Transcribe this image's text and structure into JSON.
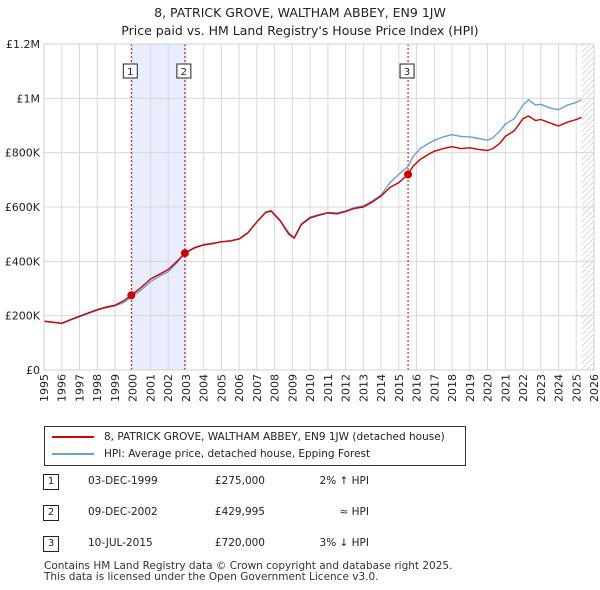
{
  "title": {
    "line1": "8, PATRICK GROVE, WALTHAM ABBEY, EN9 1JW",
    "line2": "Price paid vs. HM Land Registry's House Price Index (HPI)"
  },
  "colors": {
    "property": "#cc0000",
    "hpi": "#6a9fd4",
    "shade": "#e8eeff",
    "vline": "#cc0000"
  },
  "chart_data": {
    "type": "line",
    "title": "8, PATRICK GROVE, WALTHAM ABBEY, EN9 1JW",
    "subtitle": "Price paid vs. HM Land Registry's House Price Index (HPI)",
    "xlim": [
      1995,
      2026
    ],
    "ylim": [
      0,
      1200000
    ],
    "y_ticks": [
      {
        "value": 0,
        "label": "£0"
      },
      {
        "value": 200000,
        "label": "£200K"
      },
      {
        "value": 400000,
        "label": "£400K"
      },
      {
        "value": 600000,
        "label": "£600K"
      },
      {
        "value": 800000,
        "label": "£800K"
      },
      {
        "value": 1000000,
        "label": "£1M"
      },
      {
        "value": 1200000,
        "label": "£1.2M"
      }
    ],
    "x_ticks": [
      "1995",
      "1996",
      "1997",
      "1998",
      "1999",
      "2000",
      "2001",
      "2002",
      "2003",
      "2004",
      "2005",
      "2006",
      "2007",
      "2008",
      "2009",
      "2010",
      "2011",
      "2012",
      "2013",
      "2014",
      "2015",
      "2016",
      "2017",
      "2018",
      "2019",
      "2020",
      "2021",
      "2022",
      "2023",
      "2024",
      "2025",
      "2026"
    ],
    "shaded_periods": [
      [
        1999.92,
        2002.94
      ]
    ],
    "hatched_after": 2025.3,
    "series": [
      {
        "name": "8, PATRICK GROVE, WALTHAM ABBEY, EN9 1JW (detached house)",
        "x": [
          1995,
          1995.5,
          1996,
          1996.5,
          1997,
          1997.5,
          1998,
          1998.5,
          1999,
          1999.5,
          1999.92,
          2000.5,
          2001,
          2001.5,
          2002,
          2002.5,
          2002.94,
          2003.5,
          2004,
          2004.5,
          2005,
          2005.5,
          2006,
          2006.5,
          2007,
          2007.5,
          2007.8,
          2008.3,
          2008.8,
          2009.1,
          2009.5,
          2010,
          2010.5,
          2011,
          2011.5,
          2012,
          2012.5,
          2013,
          2013.5,
          2014,
          2014.5,
          2015,
          2015.52,
          2015.8,
          2016.2,
          2016.7,
          2017,
          2017.5,
          2018,
          2018.5,
          2019,
          2019.5,
          2020,
          2020.3,
          2020.7,
          2021,
          2021.5,
          2022,
          2022.3,
          2022.7,
          2023,
          2023.5,
          2024,
          2024.5,
          2025,
          2025.3
        ],
        "y": [
          180000,
          176000,
          172000,
          185000,
          198000,
          210000,
          222000,
          232000,
          238000,
          255000,
          275000,
          305000,
          335000,
          352000,
          370000,
          400000,
          429995,
          450000,
          460000,
          465000,
          472000,
          475000,
          482000,
          505000,
          545000,
          580000,
          585000,
          550000,
          500000,
          485000,
          535000,
          560000,
          570000,
          578000,
          575000,
          583000,
          595000,
          600000,
          618000,
          640000,
          672000,
          690000,
          720000,
          750000,
          775000,
          795000,
          805000,
          815000,
          822000,
          815000,
          818000,
          812000,
          808000,
          815000,
          835000,
          860000,
          880000,
          925000,
          935000,
          918000,
          922000,
          910000,
          898000,
          912000,
          922000,
          930000
        ]
      },
      {
        "name": "HPI: Average price, detached house, Epping Forest",
        "x": [
          1995,
          1995.5,
          1996,
          1996.5,
          1997,
          1997.5,
          1998,
          1998.5,
          1999,
          1999.5,
          1999.92,
          2000.5,
          2001,
          2001.5,
          2002,
          2002.5,
          2002.94,
          2003.5,
          2004,
          2004.5,
          2005,
          2005.5,
          2006,
          2006.5,
          2007,
          2007.5,
          2007.8,
          2008.3,
          2008.8,
          2009.1,
          2009.5,
          2010,
          2010.5,
          2011,
          2011.5,
          2012,
          2012.5,
          2013,
          2013.5,
          2014,
          2014.5,
          2015,
          2015.52,
          2015.8,
          2016.2,
          2016.7,
          2017,
          2017.5,
          2018,
          2018.5,
          2019,
          2019.5,
          2020,
          2020.3,
          2020.7,
          2021,
          2021.5,
          2022,
          2022.3,
          2022.7,
          2023,
          2023.5,
          2024,
          2024.5,
          2025,
          2025.3
        ],
        "y": [
          178000,
          175000,
          172000,
          184000,
          196000,
          208000,
          220000,
          229000,
          236000,
          248000,
          268000,
          296000,
          325000,
          345000,
          362000,
          395000,
          432000,
          452000,
          462000,
          467000,
          472000,
          476000,
          484000,
          506000,
          546000,
          582000,
          588000,
          552000,
          505000,
          488000,
          538000,
          563000,
          572000,
          580000,
          578000,
          586000,
          598000,
          604000,
          622000,
          644000,
          690000,
          720000,
          750000,
          785000,
          815000,
          835000,
          845000,
          858000,
          866000,
          860000,
          858000,
          852000,
          846000,
          855000,
          880000,
          905000,
          925000,
          975000,
          995000,
          975000,
          978000,
          965000,
          958000,
          975000,
          985000,
          995000
        ]
      }
    ],
    "sales": [
      {
        "num": "1",
        "x": 1999.92,
        "y": 275000
      },
      {
        "num": "2",
        "x": 2002.94,
        "y": 429995
      },
      {
        "num": "3",
        "x": 2015.52,
        "y": 720000
      }
    ]
  },
  "legend": {
    "property_label": "8, PATRICK GROVE, WALTHAM ABBEY, EN9 1JW (detached house)",
    "hpi_label": "HPI: Average price, detached house, Epping Forest"
  },
  "sales_table": [
    {
      "num": "1",
      "date": "03-DEC-1999",
      "price": "£275,000",
      "hpi": "2% ↑ HPI"
    },
    {
      "num": "2",
      "date": "09-DEC-2002",
      "price": "£429,995",
      "hpi": "≈ HPI"
    },
    {
      "num": "3",
      "date": "10-JUL-2015",
      "price": "£720,000",
      "hpi": "3% ↓ HPI"
    }
  ],
  "footer": {
    "line1": "Contains HM Land Registry data © Crown copyright and database right 2025.",
    "line2": "This data is licensed under the Open Government Licence v3.0."
  }
}
